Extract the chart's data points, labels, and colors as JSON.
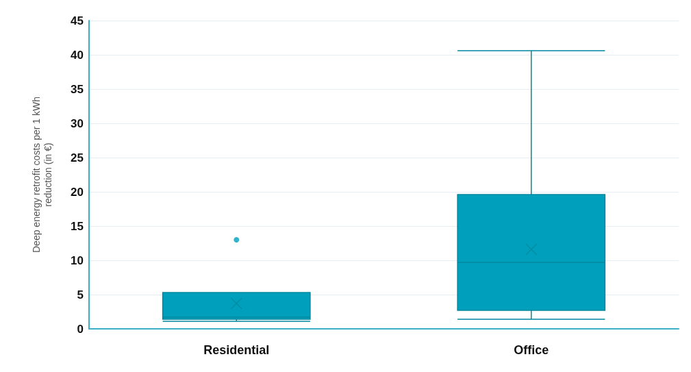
{
  "chart_data": {
    "type": "box",
    "ylabel": "Deep energy retrofit costs per 1 kWh reduction (in €)",
    "categories": [
      "Residential",
      "Office"
    ],
    "boxes": [
      {
        "low": 1.1,
        "q1": 1.4,
        "median": 1.7,
        "q3": 5.3,
        "high": 5.3,
        "mean": 3.7,
        "outliers": [
          13
        ]
      },
      {
        "low": 1.4,
        "q1": 2.7,
        "median": 9.7,
        "q3": 19.6,
        "high": 40.6,
        "mean": 11.6
      }
    ],
    "color": "#00a0bd",
    "ylim": [
      0,
      45
    ],
    "yticks": [
      0,
      5,
      10,
      15,
      20,
      25,
      30,
      35,
      40,
      45
    ],
    "grid": "y"
  }
}
